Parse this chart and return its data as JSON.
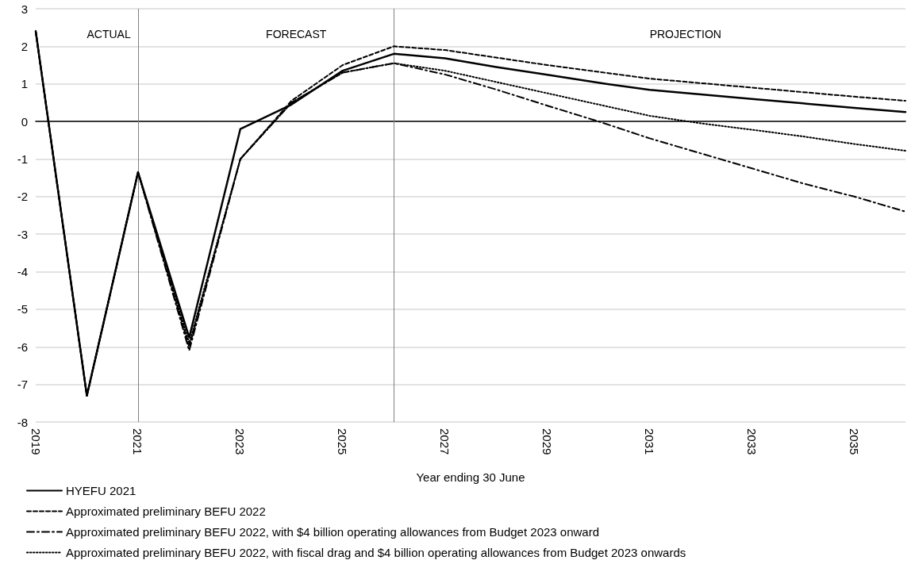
{
  "chart_data": {
    "type": "line",
    "xlabel": "Year ending 30 June",
    "x": [
      2019,
      2020,
      2021,
      2022,
      2023,
      2024,
      2025,
      2026,
      2027,
      2028,
      2029,
      2030,
      2031,
      2032,
      2033,
      2034,
      2035,
      2036
    ],
    "xlim": [
      2019,
      2036
    ],
    "xticks": [
      2019,
      2021,
      2023,
      2025,
      2027,
      2029,
      2031,
      2033,
      2035
    ],
    "series": [
      {
        "name": "HYEFU 2021",
        "color": "#000000",
        "line_style": "solid",
        "values": [
          2.4,
          -7.3,
          -1.35,
          -5.75,
          -0.2,
          0.45,
          1.35,
          1.8,
          1.68,
          1.45,
          1.24,
          1.03,
          0.84,
          0.72,
          0.6,
          0.48,
          0.36,
          0.25
        ]
      },
      {
        "name": "Approximated preliminary BEFU 2022",
        "color": "#000000",
        "line_style": "dashed",
        "values": [
          2.4,
          -7.3,
          -1.35,
          -6.0,
          -1.0,
          0.55,
          1.5,
          2.0,
          1.9,
          1.7,
          1.5,
          1.32,
          1.14,
          1.02,
          0.9,
          0.78,
          0.66,
          0.55
        ]
      },
      {
        "name": "Approximated preliminary BEFU 2022, with $4 billion operating allowances from Budget 2023 onward",
        "color": "#000000",
        "line_style": "dashdot",
        "values": [
          2.4,
          -7.3,
          -1.35,
          -6.1,
          -1.0,
          0.5,
          1.3,
          1.55,
          1.25,
          0.85,
          0.42,
          0.0,
          -0.45,
          -0.85,
          -1.25,
          -1.65,
          -2.0,
          -2.4
        ]
      },
      {
        "name": "Approximated preliminary BEFU 2022, with fiscal drag and $4 billion operating allowances from Budget 2023 onwards",
        "color": "#000000",
        "line_style": "dotted",
        "values": [
          2.4,
          -7.3,
          -1.35,
          -5.9,
          -1.0,
          0.5,
          1.3,
          1.55,
          1.35,
          1.05,
          0.75,
          0.45,
          0.15,
          -0.05,
          -0.22,
          -0.4,
          -0.6,
          -0.78
        ]
      }
    ],
    "ylim": [
      -8,
      3
    ],
    "yticks": [
      -8,
      -7,
      -6,
      -5,
      -4,
      -3,
      -2,
      -1,
      0,
      1,
      2,
      3
    ],
    "grid": "y",
    "legend": "bottom left",
    "marker": "none",
    "ref_lines": [
      {
        "axis": "x",
        "value": 2021,
        "color": "#808080"
      },
      {
        "axis": "x",
        "value": 2026,
        "color": "#808080"
      }
    ],
    "annotations": [
      "ACTUAL",
      "FORECAST",
      "PROJECTION"
    ]
  }
}
